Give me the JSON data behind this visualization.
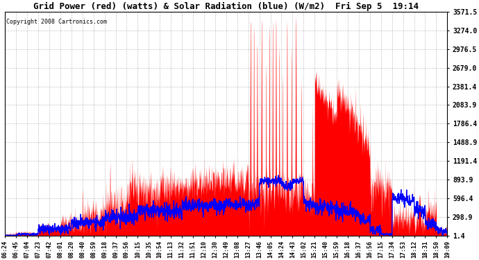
{
  "title": "Grid Power (red) (watts) & Solar Radiation (blue) (W/m2)  Fri Sep 5  19:14",
  "copyright": "Copyright 2008 Cartronics.com",
  "bg_color": "#ffffff",
  "plot_bg_color": "#ffffff",
  "grid_color": "#aaaaaa",
  "red_color": "#ff0000",
  "blue_color": "#0000ff",
  "y_ticks": [
    1.4,
    298.9,
    596.4,
    893.9,
    1191.4,
    1488.9,
    1786.4,
    2083.9,
    2381.4,
    2679.0,
    2976.5,
    3274.0,
    3571.5
  ],
  "x_labels": [
    "06:24",
    "06:45",
    "07:04",
    "07:23",
    "07:42",
    "08:01",
    "08:20",
    "08:40",
    "08:59",
    "09:18",
    "09:37",
    "09:56",
    "10:15",
    "10:35",
    "10:54",
    "11:13",
    "11:32",
    "11:51",
    "12:10",
    "12:30",
    "12:49",
    "13:08",
    "13:27",
    "13:46",
    "14:05",
    "14:24",
    "14:43",
    "15:02",
    "15:21",
    "15:40",
    "15:59",
    "16:18",
    "16:37",
    "16:56",
    "17:15",
    "17:34",
    "17:53",
    "18:12",
    "18:31",
    "18:50",
    "19:09"
  ],
  "ymin": 1.4,
  "ymax": 3571.5,
  "n_points": 41
}
